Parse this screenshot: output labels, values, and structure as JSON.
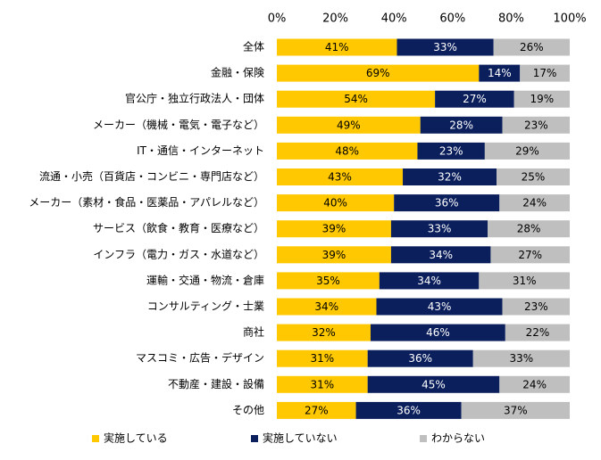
{
  "chart_data": {
    "type": "bar",
    "orientation": "horizontal",
    "stacked": true,
    "percent_stacked": true,
    "xlim": [
      0,
      100
    ],
    "x_ticks": [
      "0%",
      "20%",
      "40%",
      "60%",
      "80%",
      "100%"
    ],
    "grid": false,
    "legend_position": "bottom",
    "categories": [
      "全体",
      "金融・保険",
      "官公庁・独立行政法人・団体",
      "メーカー（機械・電気・電子など）",
      "IT・通信・インターネット",
      "流通・小売（百貨店・コンビニ・専門店など）",
      "メーカー（素材・食品・医薬品・アパレルなど）",
      "サービス（飲食・教育・医療など）",
      "インフラ（電力・ガス・水道など）",
      "運輸・交通・物流・倉庫",
      "コンサルティング・士業",
      "商社",
      "マスコミ・広告・デザイン",
      "不動産・建設・設備",
      "その他"
    ],
    "series": [
      {
        "name": "実施している",
        "color": "#FFC800",
        "label_color": "#000000",
        "values": [
          41,
          69,
          54,
          49,
          48,
          43,
          40,
          39,
          39,
          35,
          34,
          32,
          31,
          31,
          27
        ]
      },
      {
        "name": "実施していない",
        "color": "#0B1F5C",
        "label_color": "#FFFFFF",
        "values": [
          33,
          14,
          27,
          28,
          23,
          32,
          36,
          33,
          34,
          34,
          43,
          46,
          36,
          45,
          36
        ]
      },
      {
        "name": "わからない",
        "color": "#BFBFBF",
        "label_color": "#000000",
        "values": [
          26,
          17,
          19,
          23,
          29,
          25,
          24,
          28,
          27,
          31,
          23,
          22,
          33,
          24,
          37
        ]
      }
    ]
  }
}
